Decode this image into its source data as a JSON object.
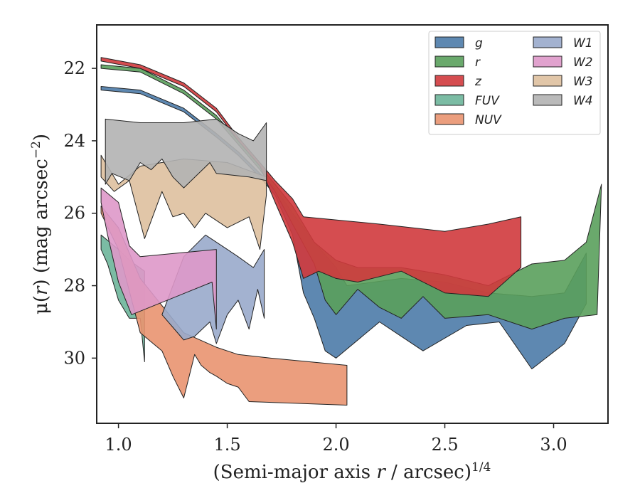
{
  "chart_data": {
    "type": "area",
    "xlabel_main": "(Semi-major axis ",
    "xlabel_var": "r",
    "xlabel_rest": " / arcsec)",
    "xlabel_sup": "1/4",
    "ylabel_main": "μ(",
    "ylabel_var": "r",
    "ylabel_rest": ") (mag arcsec",
    "ylabel_sup": "−2",
    "ylabel_close": ")",
    "xlim": [
      0.9,
      3.25
    ],
    "ylim": [
      31.8,
      20.8
    ],
    "y_inverted": true,
    "xticks": [
      1.0,
      1.5,
      2.0,
      2.5,
      3.0
    ],
    "xtick_labels": [
      "1.0",
      "1.5",
      "2.0",
      "2.5",
      "3.0"
    ],
    "yticks": [
      22,
      24,
      26,
      28,
      30
    ],
    "ytick_labels": [
      "22",
      "24",
      "26",
      "28",
      "30"
    ],
    "grid": false,
    "legend_placement": "top-right",
    "legend_columns": 2,
    "series": [
      {
        "name": "g",
        "color": "#4c7ba8",
        "upper": [
          [
            0.92,
            22.5
          ],
          [
            1.1,
            22.6
          ],
          [
            1.3,
            23.1
          ],
          [
            1.45,
            23.8
          ],
          [
            1.55,
            24.3
          ],
          [
            1.65,
            24.9
          ],
          [
            1.72,
            25.3
          ],
          [
            1.8,
            26.0
          ],
          [
            1.9,
            26.8
          ],
          [
            2.0,
            27.5
          ],
          [
            2.05,
            28.0
          ],
          [
            2.3,
            27.8
          ],
          [
            2.5,
            27.9
          ],
          [
            2.7,
            28.2
          ],
          [
            2.9,
            28.3
          ],
          [
            3.05,
            28.2
          ],
          [
            3.15,
            27.1
          ]
        ],
        "lower": [
          [
            3.15,
            28.5
          ],
          [
            3.05,
            29.6
          ],
          [
            2.9,
            30.3
          ],
          [
            2.75,
            29.0
          ],
          [
            2.6,
            29.1
          ],
          [
            2.4,
            29.8
          ],
          [
            2.3,
            29.4
          ],
          [
            2.2,
            29.0
          ],
          [
            2.0,
            30.0
          ],
          [
            1.95,
            29.8
          ],
          [
            1.9,
            28.9
          ],
          [
            1.85,
            28.2
          ],
          [
            1.8,
            26.6
          ],
          [
            1.72,
            25.5
          ],
          [
            1.65,
            25.0
          ],
          [
            1.55,
            24.4
          ],
          [
            1.45,
            23.9
          ],
          [
            1.3,
            23.2
          ],
          [
            1.1,
            22.7
          ],
          [
            0.92,
            22.6
          ]
        ]
      },
      {
        "name": "r",
        "color": "#5aa05c",
        "upper": [
          [
            0.92,
            21.9
          ],
          [
            1.1,
            22.0
          ],
          [
            1.3,
            22.6
          ],
          [
            1.45,
            23.3
          ],
          [
            1.55,
            24.0
          ],
          [
            1.65,
            24.7
          ],
          [
            1.72,
            25.2
          ],
          [
            1.8,
            25.8
          ],
          [
            1.9,
            26.8
          ],
          [
            2.0,
            27.3
          ],
          [
            2.1,
            27.5
          ],
          [
            2.3,
            27.5
          ],
          [
            2.5,
            27.7
          ],
          [
            2.7,
            28.0
          ],
          [
            2.9,
            27.4
          ],
          [
            3.05,
            27.3
          ],
          [
            3.15,
            26.8
          ],
          [
            3.22,
            25.2
          ]
        ],
        "lower": [
          [
            3.2,
            28.8
          ],
          [
            3.05,
            28.9
          ],
          [
            2.9,
            29.2
          ],
          [
            2.7,
            28.8
          ],
          [
            2.5,
            28.9
          ],
          [
            2.4,
            28.3
          ],
          [
            2.3,
            28.9
          ],
          [
            2.2,
            28.6
          ],
          [
            2.1,
            28.1
          ],
          [
            2.0,
            28.8
          ],
          [
            1.95,
            28.4
          ],
          [
            1.9,
            27.4
          ],
          [
            1.8,
            26.3
          ],
          [
            1.72,
            25.4
          ],
          [
            1.65,
            24.8
          ],
          [
            1.55,
            24.1
          ],
          [
            1.45,
            23.4
          ],
          [
            1.3,
            22.7
          ],
          [
            1.1,
            22.1
          ],
          [
            0.92,
            22.0
          ]
        ]
      },
      {
        "name": "z",
        "color": "#d03a3d",
        "upper": [
          [
            0.92,
            21.7
          ],
          [
            1.1,
            21.9
          ],
          [
            1.3,
            22.4
          ],
          [
            1.45,
            23.1
          ],
          [
            1.55,
            23.9
          ],
          [
            1.65,
            24.6
          ],
          [
            1.72,
            25.1
          ],
          [
            1.8,
            25.6
          ],
          [
            1.85,
            26.1
          ],
          [
            2.2,
            26.3
          ],
          [
            2.5,
            26.5
          ],
          [
            2.7,
            26.3
          ],
          [
            2.85,
            26.1
          ]
        ],
        "lower": [
          [
            2.85,
            27.5
          ],
          [
            2.7,
            28.3
          ],
          [
            2.5,
            28.2
          ],
          [
            2.3,
            27.6
          ],
          [
            2.1,
            27.9
          ],
          [
            2.0,
            27.8
          ],
          [
            1.92,
            27.6
          ],
          [
            1.85,
            27.8
          ],
          [
            1.8,
            26.8
          ],
          [
            1.72,
            25.7
          ],
          [
            1.65,
            24.7
          ],
          [
            1.55,
            24.0
          ],
          [
            1.45,
            23.2
          ],
          [
            1.3,
            22.5
          ],
          [
            1.1,
            22.0
          ],
          [
            0.92,
            21.8
          ]
        ]
      },
      {
        "name": "FUV",
        "color": "#6db59a",
        "upper": [
          [
            0.92,
            26.6
          ],
          [
            1.0,
            27.0
          ],
          [
            1.05,
            27.3
          ],
          [
            1.12,
            27.6
          ]
        ],
        "lower": [
          [
            1.12,
            30.1
          ],
          [
            1.1,
            28.9
          ],
          [
            1.05,
            28.9
          ],
          [
            1.0,
            28.4
          ],
          [
            0.95,
            27.4
          ],
          [
            0.92,
            27.0
          ]
        ]
      },
      {
        "name": "NUV",
        "color": "#e99470",
        "upper": [
          [
            0.92,
            25.8
          ],
          [
            1.0,
            26.4
          ],
          [
            1.1,
            27.8
          ],
          [
            1.3,
            29.3
          ],
          [
            1.45,
            29.7
          ],
          [
            1.55,
            29.9
          ],
          [
            1.7,
            30.0
          ],
          [
            2.05,
            30.2
          ]
        ],
        "lower": [
          [
            2.05,
            31.3
          ],
          [
            1.6,
            31.2
          ],
          [
            1.55,
            30.8
          ],
          [
            1.5,
            30.7
          ],
          [
            1.45,
            30.5
          ],
          [
            1.42,
            30.4
          ],
          [
            1.38,
            30.2
          ],
          [
            1.35,
            29.9
          ],
          [
            1.3,
            31.1
          ],
          [
            1.25,
            30.5
          ],
          [
            1.2,
            29.8
          ],
          [
            1.1,
            29.3
          ],
          [
            1.0,
            27.0
          ],
          [
            0.92,
            26.0
          ]
        ]
      },
      {
        "name": "W1",
        "color": "#99aacb",
        "upper": [
          [
            1.3,
            27.2
          ],
          [
            1.4,
            26.6
          ],
          [
            1.5,
            27.0
          ],
          [
            1.55,
            27.2
          ],
          [
            1.62,
            27.5
          ],
          [
            1.67,
            27.0
          ]
        ],
        "lower": [
          [
            1.67,
            28.9
          ],
          [
            1.64,
            28.1
          ],
          [
            1.6,
            29.2
          ],
          [
            1.55,
            28.4
          ],
          [
            1.5,
            28.8
          ],
          [
            1.45,
            29.6
          ],
          [
            1.42,
            29.0
          ],
          [
            1.35,
            29.4
          ],
          [
            1.3,
            29.5
          ],
          [
            1.2,
            28.8
          ]
        ]
      },
      {
        "name": "W2",
        "color": "#de98c9",
        "upper": [
          [
            0.92,
            25.3
          ],
          [
            1.0,
            25.7
          ],
          [
            1.05,
            26.9
          ],
          [
            1.1,
            27.2
          ],
          [
            1.45,
            27.0
          ]
        ],
        "lower": [
          [
            1.45,
            29.2
          ],
          [
            1.43,
            27.9
          ],
          [
            1.06,
            28.8
          ],
          [
            1.0,
            27.9
          ],
          [
            0.95,
            26.6
          ],
          [
            0.92,
            25.7
          ]
        ]
      },
      {
        "name": "W3",
        "color": "#dec09e",
        "upper": [
          [
            0.92,
            24.4
          ],
          [
            1.0,
            25.2
          ],
          [
            1.1,
            24.7
          ],
          [
            1.3,
            24.5
          ],
          [
            1.5,
            24.6
          ],
          [
            1.68,
            25.0
          ]
        ],
        "lower": [
          [
            1.68,
            25.5
          ],
          [
            1.65,
            27.0
          ],
          [
            1.6,
            26.1
          ],
          [
            1.5,
            26.4
          ],
          [
            1.4,
            26.0
          ],
          [
            1.35,
            26.4
          ],
          [
            1.3,
            26.0
          ],
          [
            1.25,
            26.1
          ],
          [
            1.2,
            25.4
          ],
          [
            1.12,
            26.7
          ],
          [
            1.05,
            25.1
          ],
          [
            0.98,
            25.4
          ],
          [
            0.92,
            25.0
          ]
        ]
      },
      {
        "name": "W4",
        "color": "#b3b3b3",
        "upper": [
          [
            0.94,
            23.4
          ],
          [
            1.1,
            23.5
          ],
          [
            1.3,
            23.5
          ],
          [
            1.45,
            23.4
          ],
          [
            1.55,
            23.8
          ],
          [
            1.62,
            24.0
          ],
          [
            1.68,
            23.5
          ]
        ],
        "lower": [
          [
            1.68,
            25.1
          ],
          [
            1.6,
            25.0
          ],
          [
            1.45,
            24.9
          ],
          [
            1.42,
            24.6
          ],
          [
            1.3,
            25.3
          ],
          [
            1.25,
            25.0
          ],
          [
            1.2,
            24.5
          ],
          [
            1.15,
            24.8
          ],
          [
            1.1,
            24.6
          ],
          [
            1.05,
            25.1
          ],
          [
            0.97,
            24.9
          ],
          [
            0.94,
            25.2
          ]
        ]
      }
    ],
    "legend_order": [
      "g",
      "r",
      "z",
      "FUV",
      "NUV",
      "W1",
      "W2",
      "W3",
      "W4"
    ]
  }
}
